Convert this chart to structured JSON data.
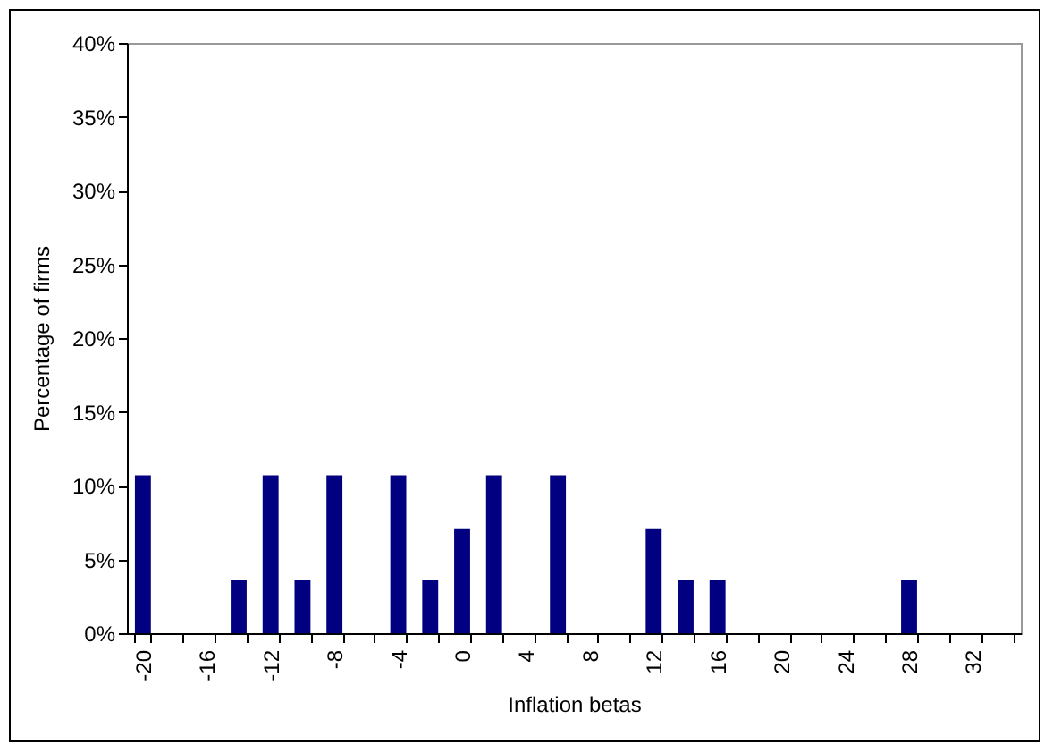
{
  "chart_data": {
    "type": "bar",
    "xlabel": "Inflation betas",
    "ylabel": "Percentage of firms",
    "categories": [
      "-20",
      null,
      "-16",
      null,
      "-12",
      null,
      "-8",
      null,
      "-4",
      null,
      "0",
      null,
      "4",
      null,
      "8",
      null,
      "12",
      null,
      "16",
      null,
      "20",
      null,
      "24",
      null,
      "28",
      null,
      "32",
      null
    ],
    "values": [
      10.7,
      0,
      0,
      3.6,
      10.7,
      3.6,
      10.7,
      0,
      10.7,
      3.6,
      7.1,
      10.7,
      0,
      10.7,
      0,
      0,
      7.1,
      3.6,
      3.6,
      0,
      0,
      0,
      0,
      0,
      3.6,
      0,
      0,
      0
    ],
    "color": "#000080",
    "ylim": [
      0,
      40
    ],
    "yticks": [
      {
        "value": 0,
        "label": "0%"
      },
      {
        "value": 5,
        "label": "5%"
      },
      {
        "value": 10,
        "label": "10%"
      },
      {
        "value": 15,
        "label": "15%"
      },
      {
        "value": 20,
        "label": "20%"
      },
      {
        "value": 25,
        "label": "25%"
      },
      {
        "value": 30,
        "label": "30%"
      },
      {
        "value": 35,
        "label": "35%"
      },
      {
        "value": 40,
        "label": "40%"
      }
    ],
    "grid": false
  }
}
